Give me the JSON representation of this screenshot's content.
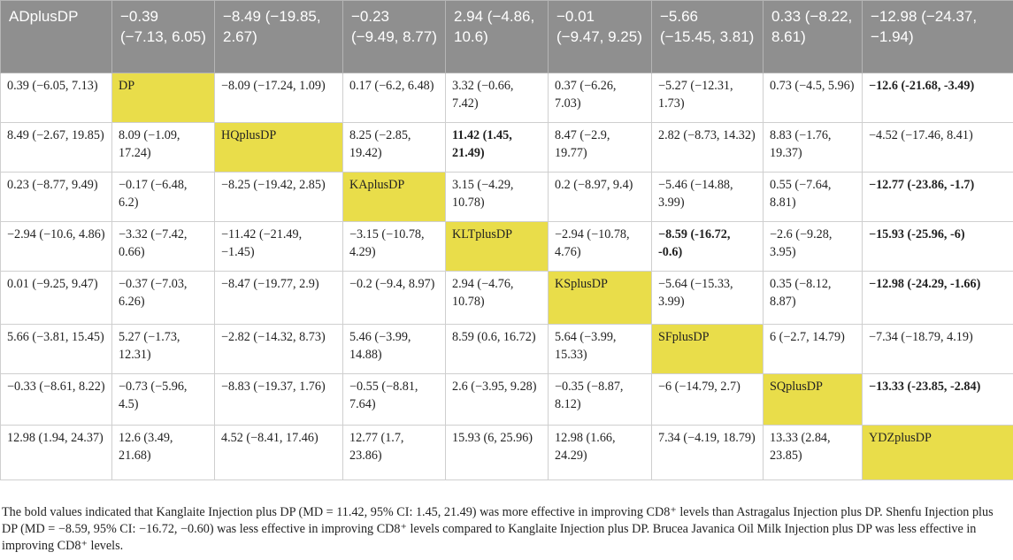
{
  "table": {
    "rows": [
      [
        {
          "text": "ADplusDP",
          "diag": true
        },
        {
          "text": "−0.39 (−7.13, 6.05)"
        },
        {
          "text": "−8.49 (−19.85, 2.67)"
        },
        {
          "text": "−0.23 (−9.49, 8.77)"
        },
        {
          "text": "2.94 (−4.86, 10.6)"
        },
        {
          "text": "−0.01 (−9.47, 9.25)"
        },
        {
          "text": "−5.66 (−15.45, 3.81)"
        },
        {
          "text": "0.33 (−8.22, 8.61)"
        },
        {
          "text": "−12.98 (−24.37, −1.94)"
        }
      ],
      [
        {
          "text": "0.39 (−6.05, 7.13)"
        },
        {
          "text": "DP",
          "diag": true
        },
        {
          "text": "−8.09 (−17.24, 1.09)"
        },
        {
          "text": "0.17 (−6.2, 6.48)"
        },
        {
          "text": "3.32 (−0.66, 7.42)"
        },
        {
          "text": "0.37 (−6.26, 7.03)"
        },
        {
          "text": "−5.27 (−12.31, 1.73)"
        },
        {
          "text": "0.73 (−4.5, 5.96)"
        },
        {
          "text": "−12.6 (-21.68, -3.49)",
          "bold": true
        }
      ],
      [
        {
          "text": "8.49 (−2.67, 19.85)"
        },
        {
          "text": "8.09 (−1.09, 17.24)"
        },
        {
          "text": "HQplusDP",
          "diag": true
        },
        {
          "text": "8.25 (−2.85, 19.42)"
        },
        {
          "text": "11.42 (1.45, 21.49)",
          "bold": true
        },
        {
          "text": "8.47 (−2.9, 19.77)"
        },
        {
          "text": "2.82 (−8.73, 14.32)"
        },
        {
          "text": "8.83 (−1.76, 19.37)"
        },
        {
          "text": "−4.52 (−17.46, 8.41)"
        }
      ],
      [
        {
          "text": "0.23 (−8.77, 9.49)"
        },
        {
          "text": "−0.17 (−6.48, 6.2)"
        },
        {
          "text": "−8.25 (−19.42, 2.85)"
        },
        {
          "text": "KAplusDP",
          "diag": true
        },
        {
          "text": "3.15 (−4.29, 10.78)"
        },
        {
          "text": "0.2 (−8.97, 9.4)"
        },
        {
          "text": "−5.46 (−14.88, 3.99)"
        },
        {
          "text": "0.55 (−7.64, 8.81)"
        },
        {
          "text": "−12.77 (-23.86, -1.7)",
          "bold": true
        }
      ],
      [
        {
          "text": "−2.94 (−10.6, 4.86)"
        },
        {
          "text": "−3.32 (−7.42, 0.66)"
        },
        {
          "text": "−11.42 (−21.49, −1.45)"
        },
        {
          "text": "−3.15 (−10.78, 4.29)"
        },
        {
          "text": "KLTplusDP",
          "diag": true
        },
        {
          "text": "−2.94 (−10.78, 4.76)"
        },
        {
          "text": "−8.59 (-16.72, -0.6)",
          "bold": true
        },
        {
          "text": "−2.6 (−9.28, 3.95)"
        },
        {
          "text": "−15.93 (-25.96, -6)",
          "bold": true
        }
      ],
      [
        {
          "text": "0.01 (−9.25, 9.47)"
        },
        {
          "text": "−0.37 (−7.03, 6.26)"
        },
        {
          "text": "−8.47 (−19.77, 2.9)"
        },
        {
          "text": "−0.2 (−9.4, 8.97)"
        },
        {
          "text": "2.94 (−4.76, 10.78)"
        },
        {
          "text": "KSplusDP",
          "diag": true
        },
        {
          "text": "−5.64 (−15.33, 3.99)"
        },
        {
          "text": "0.35 (−8.12, 8.87)"
        },
        {
          "text": "−12.98 (-24.29, -1.66)",
          "bold": true
        }
      ],
      [
        {
          "text": "5.66 (−3.81, 15.45)"
        },
        {
          "text": "5.27 (−1.73, 12.31)"
        },
        {
          "text": "−2.82 (−14.32, 8.73)"
        },
        {
          "text": "5.46 (−3.99, 14.88)"
        },
        {
          "text": "8.59 (0.6, 16.72)"
        },
        {
          "text": "5.64 (−3.99, 15.33)"
        },
        {
          "text": "SFplusDP",
          "diag": true
        },
        {
          "text": "6 (−2.7, 14.79)"
        },
        {
          "text": "−7.34 (−18.79, 4.19)"
        }
      ],
      [
        {
          "text": "−0.33 (−8.61, 8.22)"
        },
        {
          "text": "−0.73 (−5.96, 4.5)"
        },
        {
          "text": "−8.83 (−19.37, 1.76)"
        },
        {
          "text": "−0.55 (−8.81, 7.64)"
        },
        {
          "text": "2.6 (−3.95, 9.28)"
        },
        {
          "text": "−0.35 (−8.87, 8.12)"
        },
        {
          "text": "−6 (−14.79, 2.7)"
        },
        {
          "text": "SQplusDP",
          "diag": true
        },
        {
          "text": "−13.33 (-23.85, -2.84)",
          "bold": true
        }
      ],
      [
        {
          "text": "12.98 (1.94, 24.37)"
        },
        {
          "text": "12.6 (3.49, 21.68)"
        },
        {
          "text": "4.52 (−8.41, 17.46)"
        },
        {
          "text": "12.77 (1.7, 23.86)"
        },
        {
          "text": "15.93 (6, 25.96)"
        },
        {
          "text": "12.98 (1.66, 24.29)"
        },
        {
          "text": "7.34 (−4.19, 18.79)"
        },
        {
          "text": "13.33 (2.84, 23.85)"
        },
        {
          "text": "YDZplusDP",
          "diag": true
        }
      ]
    ]
  },
  "footnote": "The bold values indicated that Kanglaite Injection plus DP (MD = 11.42, 95% CI: 1.45, 21.49) was more effective in improving CD8⁺ levels than Astragalus Injection plus DP. Shenfu Injection plus DP (MD = −8.59, 95% CI: −16.72, −0.60) was less effective in improving CD8⁺ levels compared to Kanglaite Injection plus DP. Brucea Javanica Oil Milk Injection plus DP was less effective in improving CD8⁺ levels.",
  "colors": {
    "header_bg": "#8f8f8f",
    "diagonal_bg": "#e9dd4a",
    "border": "#cfcfcf"
  }
}
